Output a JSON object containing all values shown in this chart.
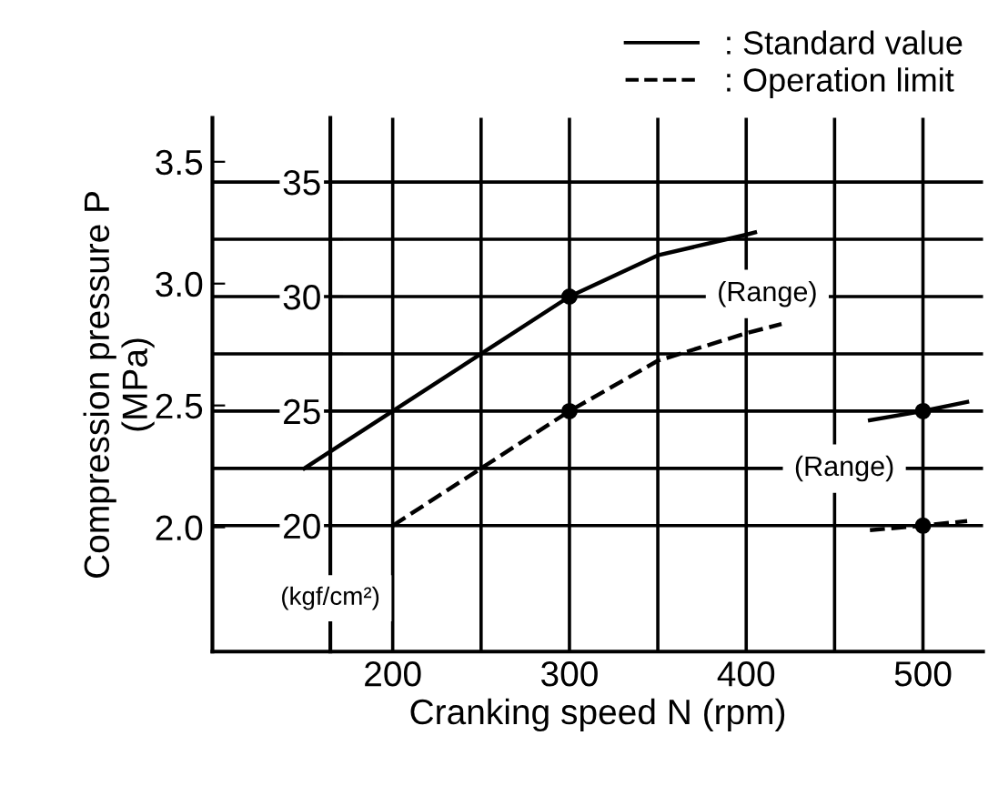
{
  "chart_data": {
    "type": "line",
    "xlabel": "Cranking speed N (rpm)",
    "ylabel": "Compression pressure P\n(MPa)",
    "y2label": "(kgf/cm²)",
    "xlim": [
      98,
      534
    ],
    "xticks": [
      200,
      {
        "value": 250,
        "label": null
      },
      300,
      {
        "value": 350,
        "label": null
      },
      400,
      {
        "value": 450,
        "label": null
      },
      500
    ],
    "ylim": [
      1.49,
      3.68
    ],
    "yticks": [
      {
        "value": 2.0,
        "label": "2.0"
      },
      2.5,
      {
        "value": 3.0,
        "label": "3.0"
      },
      3.5
    ],
    "y2lim": [
      14.5,
      37.8
    ],
    "y2ticks": [
      20,
      {
        "value": 22.5,
        "label": null
      },
      25,
      {
        "value": 27.5,
        "label": null
      },
      30,
      {
        "value": 32.5,
        "label": null
      },
      35
    ],
    "grid": true,
    "legend": "top right",
    "series": [
      {
        "name": ": Standard value",
        "color": "#000000",
        "axis": "y2",
        "line_style": "solid",
        "x": [
          150,
          200,
          250,
          300,
          350,
          400,
          405
        ],
        "values": [
          22.5,
          25,
          27.5,
          30,
          31.8,
          32.7,
          32.8
        ]
      },
      {
        "name": ": Operation limit",
        "color": "#000000",
        "axis": "y2",
        "line_style": "dashed",
        "x": [
          200,
          250,
          300,
          350,
          400,
          420
        ],
        "values": [
          20,
          22.5,
          25,
          27.2,
          28.4,
          28.8
        ]
      },
      {
        "color": "#000000",
        "axis": "y2",
        "line_style": "solid",
        "x": [
          470,
          500,
          525
        ],
        "values": [
          24.6,
          25,
          25.4
        ]
      },
      {
        "color": "#000000",
        "axis": "y2",
        "line_style": "dashed",
        "x": [
          470,
          500,
          525
        ],
        "values": [
          19.8,
          20,
          20.2
        ]
      },
      {
        "type": "scatter",
        "color": "#000000",
        "axis": "y2",
        "marker": "circle",
        "x": [
          300,
          300,
          500,
          500
        ],
        "values": [
          30,
          25,
          25,
          20
        ]
      }
    ],
    "annotations": [
      "(Range)",
      "(Range)"
    ]
  }
}
